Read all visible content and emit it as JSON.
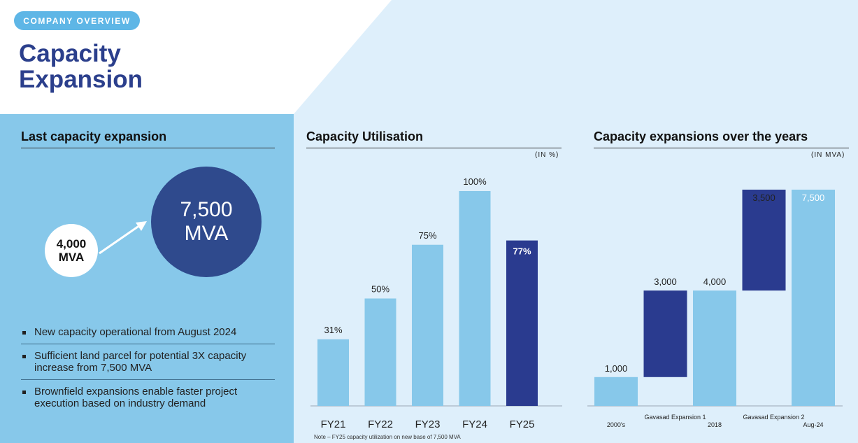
{
  "header": {
    "badge": "COMPANY OVERVIEW",
    "title": "Capacity Expansion"
  },
  "colors": {
    "light_blue": "#87c8ea",
    "dark_blue": "#2a3b8f",
    "panel_bg": "#deeffb",
    "title_color": "#2b3f8c",
    "badge_bg": "#5eb6e6"
  },
  "last_expansion": {
    "heading": "Last capacity expansion",
    "before_value": "4,000",
    "before_unit": "MVA",
    "after_value": "7,500",
    "after_unit": "MVA",
    "arrow_icon": "arrow-up-right-icon",
    "bullets": [
      "New capacity operational from August 2024",
      "Sufficient land parcel for potential 3X capacity increase from 7,500 MVA",
      "Brownfield expansions enable faster project execution based on industry demand"
    ]
  },
  "utilisation": {
    "heading": "Capacity Utilisation",
    "unit": "(IN %)",
    "note": "Note – FY25 capacity utilization on new base of 7,500 MVA"
  },
  "expansions": {
    "heading": "Capacity expansions over the years",
    "unit": "(IN MVA)"
  },
  "chart_data": [
    {
      "type": "bar",
      "title": "Capacity Utilisation",
      "unit": "(IN %)",
      "categories": [
        "FY21",
        "FY22",
        "FY23",
        "FY24",
        "FY25"
      ],
      "values": [
        31,
        50,
        75,
        100,
        77
      ],
      "labels": [
        "31%",
        "50%",
        "75%",
        "100%",
        "77%"
      ],
      "highlight": [
        false,
        false,
        false,
        false,
        true
      ],
      "ylim": [
        0,
        100
      ],
      "grid": false
    },
    {
      "type": "bar",
      "subtype": "waterfall",
      "title": "Capacity expansions over the years",
      "unit": "(IN MVA)",
      "categories": [
        "2000's",
        "Gavasad Expansion 1",
        "2018",
        "Gavasad Expansion 2",
        "Aug-24"
      ],
      "starts": [
        0,
        1000,
        0,
        4000,
        0
      ],
      "values": [
        1000,
        3000,
        4000,
        3500,
        7500
      ],
      "labels": [
        "1,000",
        "3,000",
        "4,000",
        "3,500",
        "7,500"
      ],
      "kind": [
        "total",
        "increment",
        "total",
        "increment",
        "total"
      ],
      "ylim": [
        0,
        7500
      ],
      "grid": false
    }
  ]
}
